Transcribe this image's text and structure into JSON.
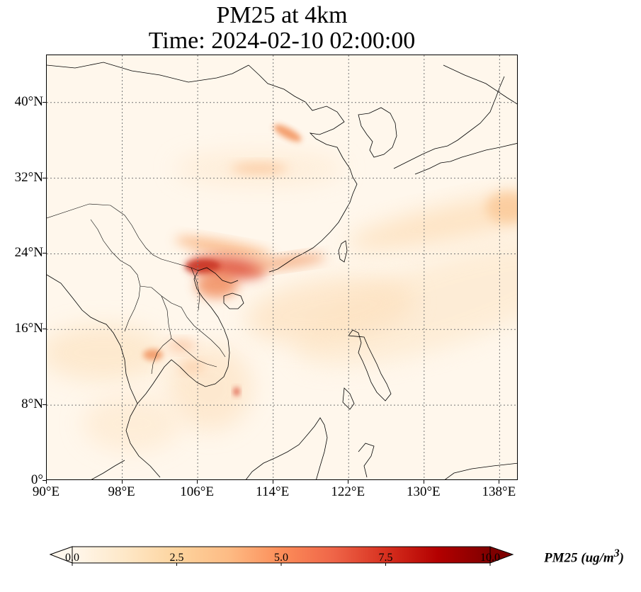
{
  "title": {
    "line1": "PM25 at 4km",
    "line2": "Time: 2024-02-10 02:00:00"
  },
  "map": {
    "extent": {
      "lon_min": 90,
      "lon_max": 140,
      "lat_min": 0,
      "lat_max": 45
    },
    "gridlines": "dotted",
    "lat_ticks": [
      {
        "value": 0,
        "label": "0°"
      },
      {
        "value": 8,
        "label": "8°N"
      },
      {
        "value": 16,
        "label": "16°N"
      },
      {
        "value": 24,
        "label": "24°N"
      },
      {
        "value": 32,
        "label": "32°N"
      },
      {
        "value": 40,
        "label": "40°N"
      }
    ],
    "lon_ticks": [
      {
        "value": 90,
        "label": "90°E"
      },
      {
        "value": 98,
        "label": "98°E"
      },
      {
        "value": 106,
        "label": "106°E"
      },
      {
        "value": 114,
        "label": "114°E"
      },
      {
        "value": 122,
        "label": "122°E"
      },
      {
        "value": 130,
        "label": "130°E"
      },
      {
        "value": 138,
        "label": "138°E"
      }
    ],
    "coastlines": "black outlines of East and Southeast Asia",
    "plumes": [
      {
        "region": "northern Vietnam / Gulf of Tonkin",
        "lon": 110,
        "lat": 22,
        "level": 6.5
      },
      {
        "region": "Shanxi / Hebei",
        "lon": 115,
        "lat": 37,
        "level": 4
      },
      {
        "region": "central China band",
        "lon": 110,
        "lat": 24.5,
        "level": 3
      },
      {
        "region": "western Thailand",
        "lon": 101,
        "lat": 13.5,
        "level": 4
      },
      {
        "region": "South China Sea spot",
        "lon": 110,
        "lat": 9.5,
        "level": 5
      }
    ]
  },
  "colorbar": {
    "colormap": "OrRd",
    "min": 0.0,
    "max": 10.0,
    "extend": "both",
    "ticks": [
      {
        "value": 0.0,
        "label": "0.0"
      },
      {
        "value": 2.5,
        "label": "2.5"
      },
      {
        "value": 5.0,
        "label": "5.0"
      },
      {
        "value": 7.5,
        "label": "7.5"
      },
      {
        "value": 10.0,
        "label": "10.0"
      }
    ],
    "label": "PM25 (ug/m",
    "label_sup": "3",
    "label_close": ")",
    "stop_colors": [
      "#fff7ec",
      "#fee8c8",
      "#fdd49e",
      "#fdbb84",
      "#fc8d59",
      "#ef6548",
      "#d7301f",
      "#b30000",
      "#7f0000"
    ]
  }
}
